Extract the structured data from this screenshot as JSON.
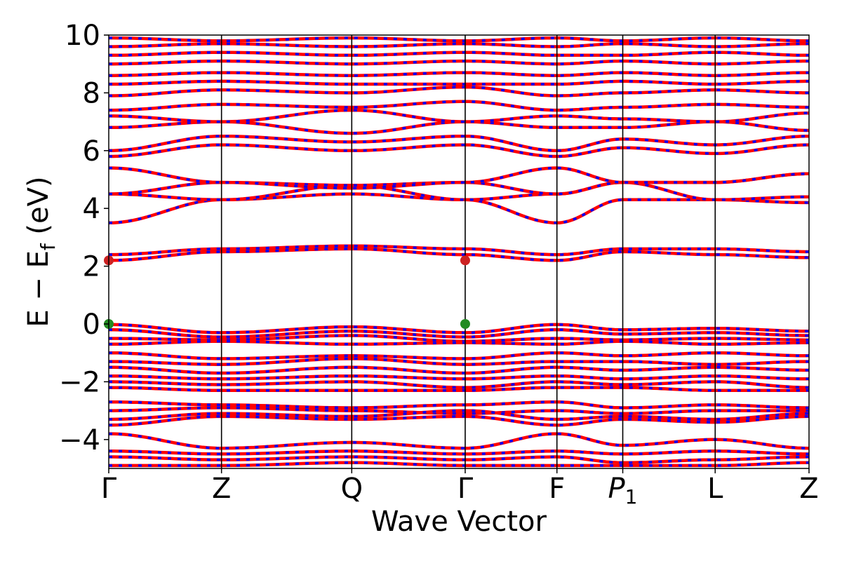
{
  "chart_data": {
    "type": "line",
    "title": "",
    "xlabel": "Wave Vector",
    "ylabel_main": "E − E",
    "ylabel_sub": "f",
    "ylabel_unit": " (eV)",
    "ylim": [
      -5,
      10
    ],
    "yticks": [
      -4,
      -2,
      0,
      2,
      4,
      6,
      8,
      10
    ],
    "ytick_labels": [
      "−4",
      "−2",
      "0",
      "2",
      "4",
      "6",
      "8",
      "10"
    ],
    "kpath": [
      {
        "label": "Γ",
        "x": 0.0
      },
      {
        "label": "Z",
        "x": 0.161
      },
      {
        "label": "Q",
        "x": 0.347
      },
      {
        "label": "Γ",
        "x": 0.509
      },
      {
        "label": "F",
        "x": 0.64
      },
      {
        "label": "P",
        "sub": "1",
        "italic": true,
        "x": 0.734
      },
      {
        "label": "L",
        "x": 0.866
      },
      {
        "label": "Z",
        "x": 1.0
      }
    ],
    "colors": {
      "spin_up": "#ff0000",
      "spin_down": "#0000ff",
      "extremum": "#228b22",
      "cbm_marker": "#cc2222"
    },
    "series": [
      {
        "values": [
          -0.02,
          -0.3,
          -0.1,
          -0.3,
          -0.02,
          -0.2,
          -0.15,
          -0.25,
          -0.2
        ]
      },
      {
        "values": [
          -0.2,
          -0.45,
          -0.25,
          -0.45,
          -0.2,
          -0.35,
          -0.3,
          -0.4,
          -0.35
        ]
      },
      {
        "values": [
          -0.5,
          -0.55,
          -0.4,
          -0.6,
          -0.5,
          -0.55,
          -0.5,
          -0.55,
          -0.55
        ]
      },
      {
        "values": [
          -0.7,
          -0.6,
          -0.7,
          -0.65,
          -0.7,
          -0.6,
          -0.7,
          -0.65,
          -0.6
        ]
      },
      {
        "values": [
          -1.0,
          -1.2,
          -1.1,
          -1.2,
          -1.0,
          -1.1,
          -1.0,
          -1.1,
          -1.2
        ]
      },
      {
        "values": [
          -1.3,
          -1.4,
          -1.2,
          -1.4,
          -1.3,
          -1.3,
          -1.4,
          -1.3,
          -1.4
        ]
      },
      {
        "values": [
          -1.5,
          -1.7,
          -1.5,
          -1.7,
          -1.5,
          -1.6,
          -1.5,
          -1.6,
          -1.7
        ]
      },
      {
        "values": [
          -1.8,
          -1.9,
          -1.8,
          -1.9,
          -1.8,
          -1.9,
          -1.8,
          -1.9,
          -1.9
        ]
      },
      {
        "values": [
          -2.0,
          -2.1,
          -2.0,
          -2.2,
          -2.0,
          -2.1,
          -2.0,
          -2.2,
          -2.1
        ]
      },
      {
        "values": [
          -2.2,
          -2.3,
          -2.3,
          -2.3,
          -2.2,
          -2.2,
          -2.3,
          -2.3,
          -2.3
        ]
      },
      {
        "values": [
          -2.7,
          -2.8,
          -2.9,
          -2.8,
          -2.7,
          -2.9,
          -2.8,
          -2.9,
          -2.8
        ]
      },
      {
        "values": [
          -3.0,
          -2.9,
          -3.0,
          -3.1,
          -3.0,
          -3.1,
          -3.0,
          -3.0,
          -2.9
        ]
      },
      {
        "values": [
          -3.3,
          -3.1,
          -3.2,
          -3.0,
          -3.3,
          -3.2,
          -3.3,
          -3.1,
          -3.1
        ]
      },
      {
        "values": [
          -3.5,
          -3.2,
          -3.3,
          -3.2,
          -3.5,
          -3.3,
          -3.4,
          -3.2,
          -3.2
        ]
      },
      {
        "values": [
          -3.8,
          -4.3,
          -4.1,
          -4.3,
          -3.8,
          -4.2,
          -4.0,
          -4.3,
          -4.3
        ]
      },
      {
        "values": [
          -4.4,
          -4.5,
          -4.4,
          -4.5,
          -4.4,
          -4.5,
          -4.4,
          -4.5,
          -4.5
        ]
      },
      {
        "values": [
          -4.6,
          -4.7,
          -4.6,
          -4.7,
          -4.6,
          -4.8,
          -4.7,
          -4.6,
          -4.7
        ]
      },
      {
        "values": [
          -4.9,
          -4.9,
          -4.8,
          -4.9,
          -4.9,
          -4.9,
          -4.9,
          -4.8,
          -4.9
        ]
      },
      {
        "values": [
          2.2,
          2.5,
          2.6,
          2.4,
          2.2,
          2.5,
          2.4,
          2.3,
          2.6
        ]
      },
      {
        "values": [
          2.4,
          2.6,
          2.7,
          2.6,
          2.4,
          2.6,
          2.6,
          2.5,
          2.6
        ]
      },
      {
        "values": [
          3.5,
          4.3,
          4.5,
          4.3,
          3.5,
          4.3,
          4.3,
          4.2,
          4.3
        ]
      },
      {
        "values": [
          4.5,
          4.3,
          4.8,
          4.3,
          4.5,
          4.9,
          4.3,
          4.4,
          4.3
        ]
      },
      {
        "values": [
          4.5,
          4.9,
          4.8,
          4.9,
          4.5,
          4.9,
          4.9,
          5.2,
          4.9
        ]
      },
      {
        "values": [
          5.4,
          4.9,
          4.7,
          4.9,
          5.4,
          4.9,
          4.9,
          5.2,
          4.9
        ]
      },
      {
        "values": [
          5.8,
          6.2,
          6.0,
          6.2,
          5.8,
          6.1,
          5.9,
          6.2,
          5.8
        ]
      },
      {
        "values": [
          6.0,
          6.5,
          6.3,
          6.5,
          6.0,
          6.4,
          6.2,
          6.5,
          6.3
        ]
      },
      {
        "values": [
          6.8,
          7.0,
          6.6,
          7.0,
          6.8,
          6.8,
          7.0,
          6.7,
          7.0
        ]
      },
      {
        "values": [
          7.2,
          7.0,
          7.4,
          7.0,
          7.2,
          7.1,
          7.0,
          7.3,
          7.0
        ]
      },
      {
        "values": [
          7.4,
          7.6,
          7.5,
          7.7,
          7.4,
          7.5,
          7.6,
          7.5,
          7.6
        ]
      },
      {
        "values": [
          7.9,
          8.1,
          8.0,
          8.2,
          7.9,
          8.0,
          8.1,
          8.0,
          8.1
        ]
      },
      {
        "values": [
          8.3,
          8.4,
          8.3,
          8.3,
          8.3,
          8.4,
          8.3,
          8.4,
          8.3
        ]
      },
      {
        "values": [
          8.6,
          8.7,
          8.6,
          8.7,
          8.6,
          8.7,
          8.6,
          8.7,
          8.7
        ]
      },
      {
        "values": [
          9.0,
          9.1,
          9.0,
          9.1,
          9.0,
          9.1,
          9.0,
          9.1,
          9.1
        ]
      },
      {
        "values": [
          9.3,
          9.4,
          9.3,
          9.4,
          9.3,
          9.3,
          9.4,
          9.3,
          9.4
        ]
      },
      {
        "values": [
          9.6,
          9.7,
          9.6,
          9.7,
          9.6,
          9.7,
          9.6,
          9.7,
          9.6
        ]
      },
      {
        "values": [
          9.9,
          9.8,
          9.9,
          9.8,
          9.9,
          9.8,
          9.9,
          9.8,
          9.9
        ]
      }
    ],
    "extrema": [
      {
        "label": "VBM",
        "x": 0.0,
        "y": 0.0,
        "color": "extremum"
      },
      {
        "label": "VBM",
        "x": 0.509,
        "y": 0.0,
        "color": "extremum"
      },
      {
        "label": "CBM",
        "x": 0.0,
        "y": 2.2,
        "color": "cbm_marker"
      },
      {
        "label": "CBM",
        "x": 0.509,
        "y": 2.2,
        "color": "cbm_marker"
      }
    ]
  }
}
